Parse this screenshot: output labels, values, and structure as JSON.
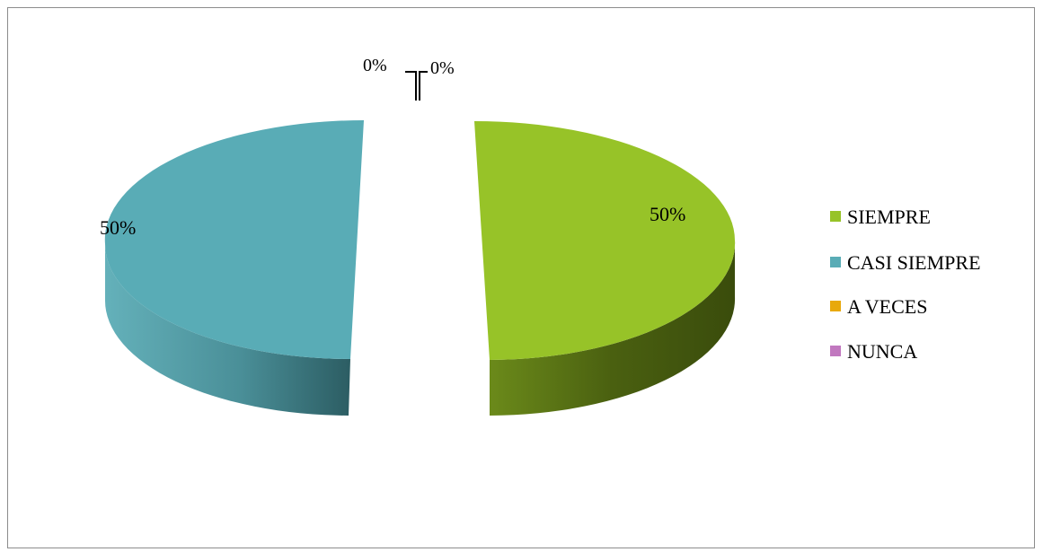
{
  "chart_data": {
    "type": "pie",
    "style": "3d-exploded",
    "categories": [
      "SIEMPRE",
      "CASI SIEMPRE",
      "A VECES",
      "NUNCA"
    ],
    "values": [
      50,
      50,
      0,
      0
    ],
    "labels": [
      "50%",
      "50%",
      "0%",
      "0%"
    ],
    "colors": [
      "#97c328",
      "#59acb6",
      "#e8a90c",
      "#c178bf"
    ],
    "legend_position": "right"
  }
}
